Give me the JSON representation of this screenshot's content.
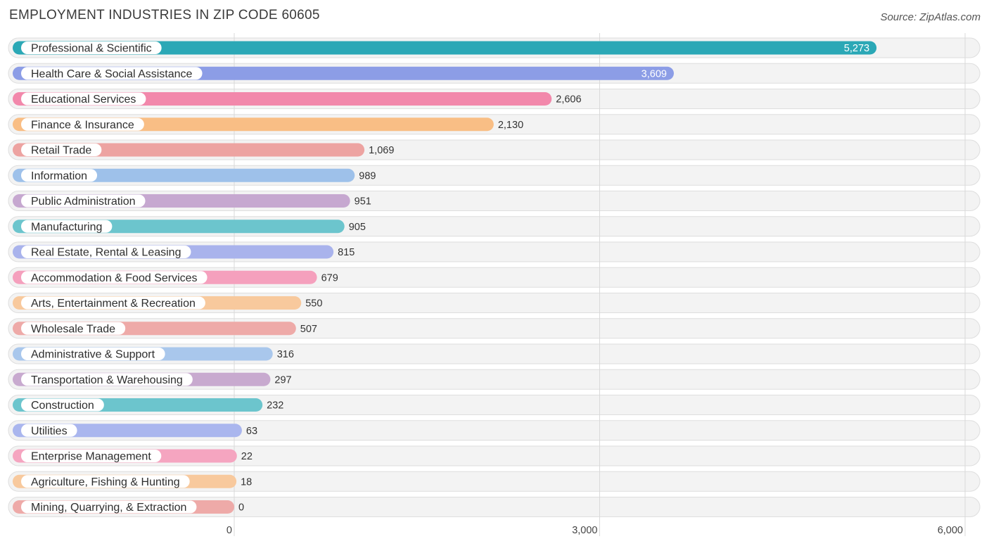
{
  "title": "EMPLOYMENT INDUSTRIES IN ZIP CODE 60605",
  "source": "Source: ZipAtlas.com",
  "chart_data": {
    "type": "bar",
    "orientation": "horizontal",
    "title": "EMPLOYMENT INDUSTRIES IN ZIP CODE 60605",
    "xlim": [
      0,
      6000
    ],
    "xticks": [
      0,
      3000,
      6000
    ],
    "xtick_labels": [
      "0",
      "3,000",
      "6,000"
    ],
    "grid": true,
    "categories": [
      "Professional & Scientific",
      "Health Care & Social Assistance",
      "Educational Services",
      "Finance & Insurance",
      "Retail Trade",
      "Information",
      "Public Administration",
      "Manufacturing",
      "Real Estate, Rental & Leasing",
      "Accommodation & Food Services",
      "Arts, Entertainment & Recreation",
      "Wholesale Trade",
      "Administrative & Support",
      "Transportation & Warehousing",
      "Construction",
      "Utilities",
      "Enterprise Management",
      "Agriculture, Fishing & Hunting",
      "Mining, Quarrying, & Extraction"
    ],
    "values": [
      5273,
      3609,
      2606,
      2130,
      1069,
      989,
      951,
      905,
      815,
      679,
      550,
      507,
      316,
      297,
      232,
      63,
      22,
      18,
      0
    ],
    "value_labels": [
      "5,273",
      "3,609",
      "2,606",
      "2,130",
      "1,069",
      "989",
      "951",
      "905",
      "815",
      "679",
      "550",
      "507",
      "316",
      "297",
      "232",
      "63",
      "22",
      "18",
      "0"
    ],
    "colors": [
      "#2ba8b6",
      "#8c9de6",
      "#f288ab",
      "#f9be85",
      "#eda3a1",
      "#9ec1ea",
      "#c6a8d0",
      "#6cc5cd",
      "#a9b3ec",
      "#f5a0bd",
      "#f8c99d",
      "#eeaaa8",
      "#a9c7ec",
      "#c8aacf",
      "#6cc5cd",
      "#aab6ee",
      "#f5a5c0",
      "#f8c99d",
      "#eeaaa8"
    ]
  }
}
